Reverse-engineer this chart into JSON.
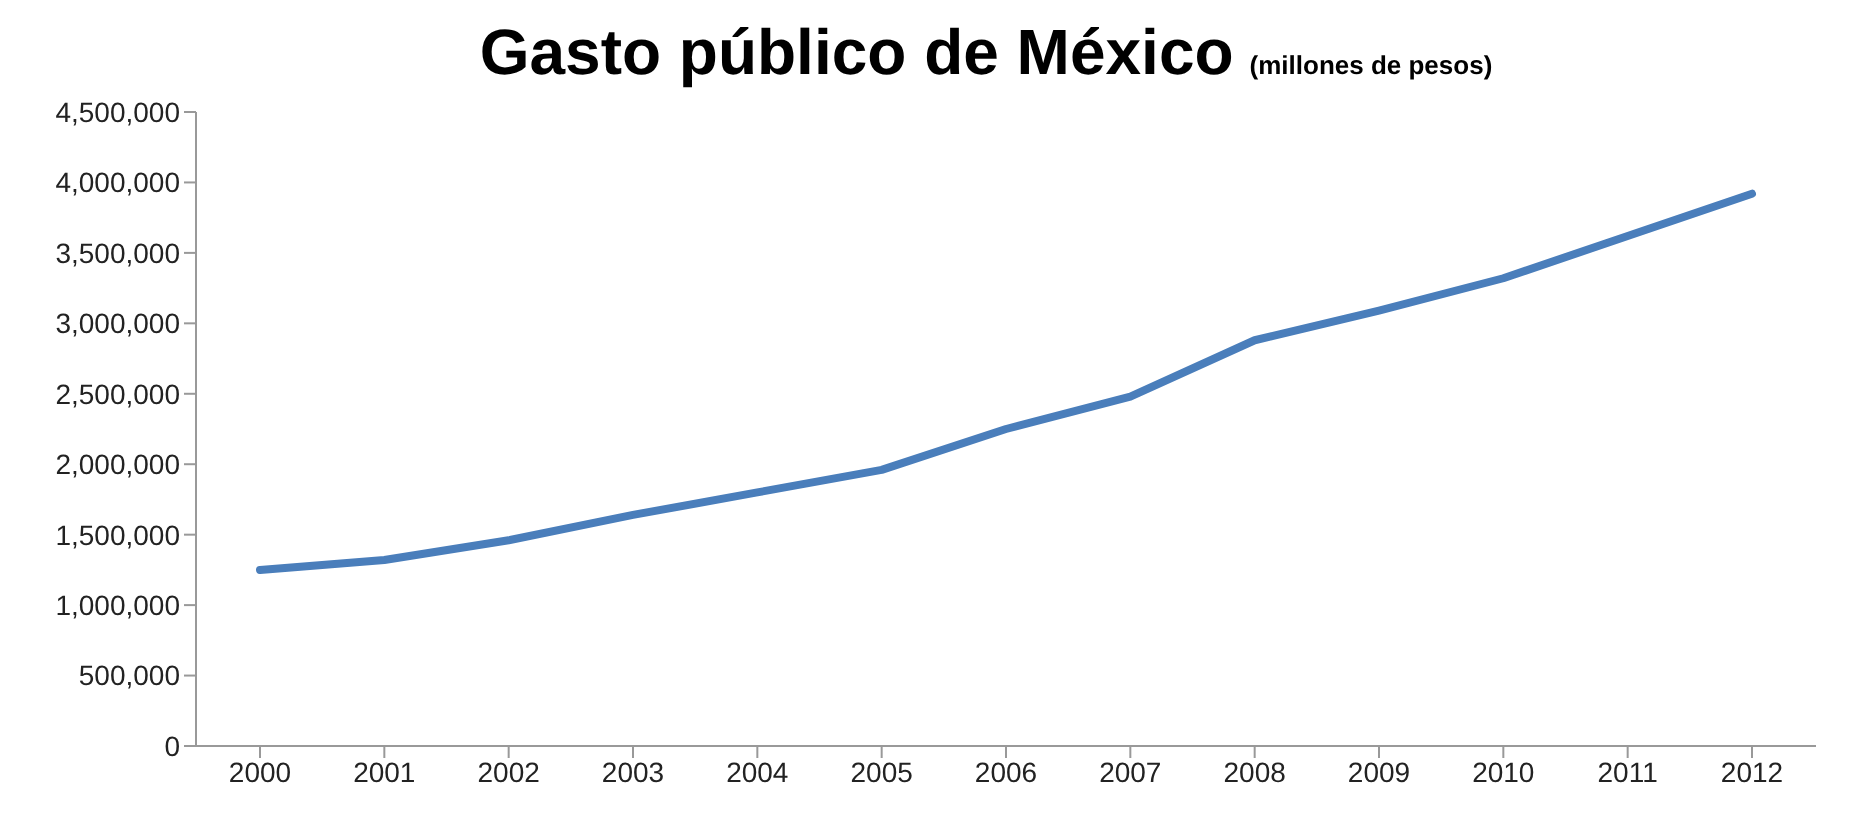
{
  "chart_data": {
    "type": "line",
    "title": "Gasto público de México",
    "subtitle": "(millones de pesos)",
    "categories": [
      "2000",
      "2001",
      "2002",
      "2003",
      "2004",
      "2005",
      "2006",
      "2007",
      "2008",
      "2009",
      "2010",
      "2011",
      "2012"
    ],
    "series": [
      {
        "color": "#4a7ebb",
        "values": [
          1250000,
          1320000,
          1460000,
          1640000,
          1800000,
          1960000,
          2250000,
          2480000,
          2880000,
          3090000,
          3320000,
          3620000,
          3920000
        ]
      }
    ],
    "ylim": [
      0,
      4500000
    ],
    "yticks": [
      {
        "value": 0,
        "label": "0"
      },
      {
        "value": 500000,
        "label": "500,000"
      },
      {
        "value": 1000000,
        "label": "1,000,000"
      },
      {
        "value": 1500000,
        "label": "1,500,000"
      },
      {
        "value": 2000000,
        "label": "2,000,000"
      },
      {
        "value": 2500000,
        "label": "2,500,000"
      },
      {
        "value": 3000000,
        "label": "3,000,000"
      },
      {
        "value": 3500000,
        "label": "3,500,000"
      },
      {
        "value": 4000000,
        "label": "4,000,000"
      },
      {
        "value": 4500000,
        "label": "4,500,000"
      }
    ],
    "grid": false,
    "legend": false,
    "marker": "none",
    "line_style": "solid"
  }
}
